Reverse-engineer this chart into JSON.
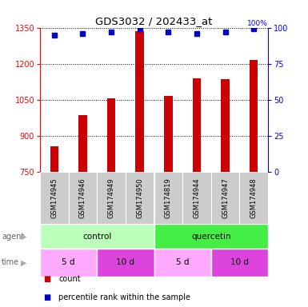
{
  "title": "GDS3032 / 202433_at",
  "samples": [
    "GSM174945",
    "GSM174946",
    "GSM174949",
    "GSM174950",
    "GSM174819",
    "GSM174944",
    "GSM174947",
    "GSM174948"
  ],
  "counts": [
    855,
    985,
    1055,
    1335,
    1065,
    1140,
    1135,
    1215
  ],
  "percentiles": [
    95,
    96,
    97,
    99,
    97,
    96,
    97,
    99
  ],
  "ylim_left": [
    750,
    1350
  ],
  "ylim_right": [
    0,
    100
  ],
  "yticks_left": [
    750,
    900,
    1050,
    1200,
    1350
  ],
  "yticks_right": [
    0,
    25,
    50,
    75,
    100
  ],
  "bar_color": "#cc0000",
  "dot_color": "#0000cc",
  "agent_control_color": "#bbffbb",
  "agent_quercetin_color": "#44ee44",
  "time_5d_color": "#ffaaff",
  "time_10d_color": "#dd44dd",
  "sample_bg_color": "#cccccc",
  "agent_label": "agent",
  "time_label": "time",
  "legend_count": "count",
  "legend_percentile": "percentile rank within the sample",
  "bar_width": 0.3
}
